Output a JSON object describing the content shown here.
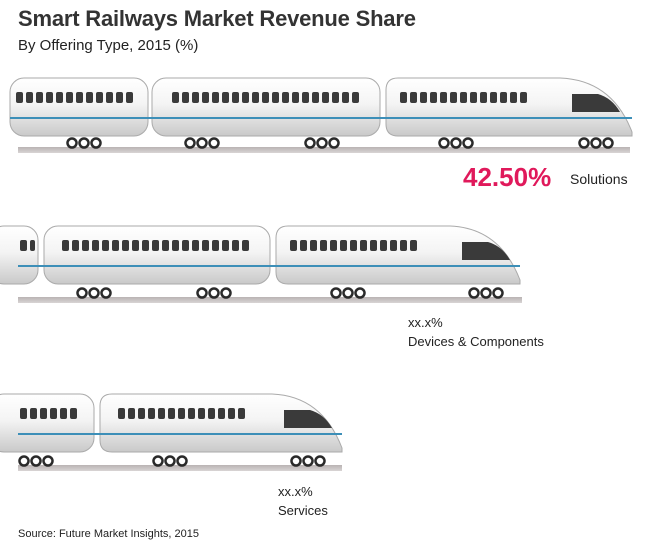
{
  "title": "Smart Railways Market Revenue Share",
  "subtitle": "By Offering Type, 2015 (%)",
  "source": "Source: Future Market Insights, 2015",
  "colors": {
    "highlight": "#e0195b",
    "stripe": "#3d8fb8",
    "track": "#a49d9d",
    "window": "#3a3a3a"
  },
  "chart_data": {
    "type": "bar",
    "title": "Smart Railways Market Revenue Share",
    "subtitle": "By Offering Type, 2015 (%)",
    "categories": [
      "Solutions",
      "Devices & Components",
      "Services"
    ],
    "value_labels": [
      "42.50%",
      "xx.x%",
      "xx.x%"
    ],
    "values": [
      42.5,
      null,
      null
    ],
    "xlabel": "",
    "ylabel": "",
    "note": "Bars drawn as trains; only the Solutions value is disclosed"
  }
}
